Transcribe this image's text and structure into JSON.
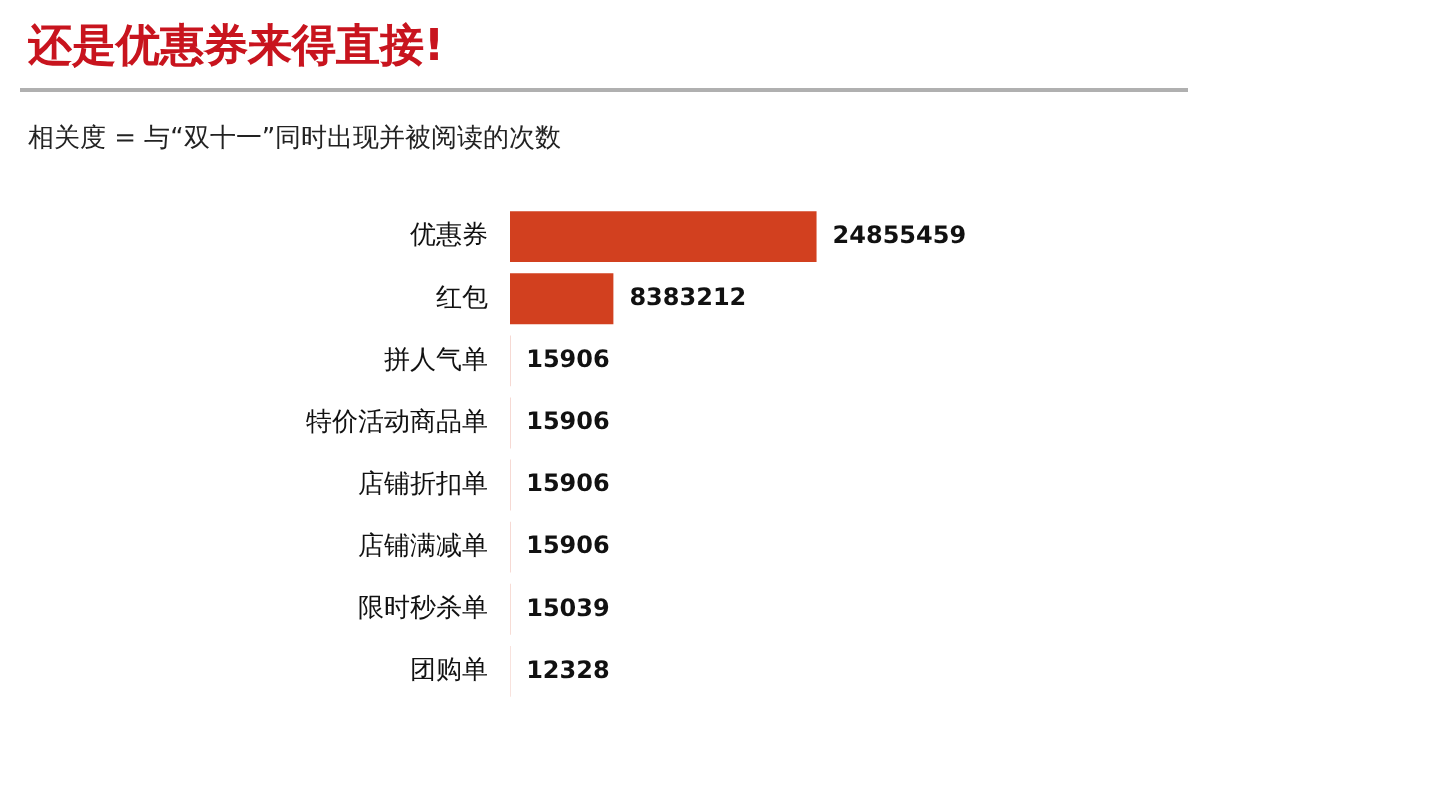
{
  "chart_data": {
    "type": "bar",
    "orientation": "horizontal",
    "title": "还是优惠券来得直接!",
    "subtitle": "相关度 = 与“双十一”同时出现并被阅读的次数",
    "categories": [
      "优惠券",
      "红包",
      "拼人气单",
      "特价活动商品单",
      "店铺折扣单",
      "店铺满减单",
      "限时秒杀单",
      "团购单"
    ],
    "values": [
      24855459,
      8383212,
      15906,
      15906,
      15906,
      15906,
      15039,
      12328
    ],
    "color": "#d2401f",
    "data_labels": true,
    "tick_labels": "y",
    "legend": false
  }
}
